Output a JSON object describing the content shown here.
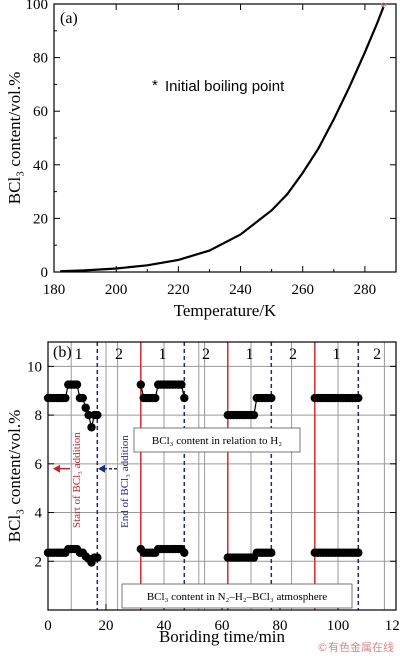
{
  "chart_data": [
    {
      "type": "line",
      "panel_tag": "(a)",
      "xlabel": "Temperature/K",
      "ylabel": "BCl₃ content/vol.%",
      "xlim": [
        180,
        290
      ],
      "ylim": [
        0,
        100
      ],
      "xticks": [
        "180",
        "200",
        "220",
        "240",
        "260",
        "280"
      ],
      "yticks": [
        "0",
        "20",
        "40",
        "60",
        "80",
        "100"
      ],
      "curve": {
        "x": [
          182,
          190,
          200,
          210,
          220,
          230,
          240,
          250,
          255,
          260,
          265,
          270,
          275,
          280,
          284,
          286
        ],
        "y": [
          0.3,
          0.6,
          1.3,
          2.5,
          4.5,
          8,
          14,
          23,
          29,
          37,
          46,
          57,
          69,
          82,
          93,
          99
        ]
      },
      "marker_point": {
        "x": 286,
        "y": 99
      },
      "legend": {
        "symbol": "*",
        "label": "Initial boiling point",
        "color": "#d94c4c"
      }
    },
    {
      "type": "scatter",
      "panel_tag": "(b)",
      "xlabel": "Boriding time/min",
      "ylabel": "BCl₃ content/vol.%",
      "xlim": [
        0,
        120
      ],
      "ylim": [
        0,
        11
      ],
      "xticks": [
        "0",
        "20",
        "40",
        "60",
        "80",
        "100",
        "120"
      ],
      "yticks": [
        "2",
        "4",
        "6",
        "8",
        "10"
      ],
      "stage_labels": [
        "1",
        "2",
        "1",
        "2",
        "1",
        "2",
        "1",
        "2"
      ],
      "series": [
        {
          "segments": [
            {
              "x": [
                0,
                1,
                2,
                3,
                4,
                5,
                6,
                7,
                8,
                9,
                10,
                11,
                12,
                13,
                14,
                15,
                16,
                17
              ],
              "y": [
                8.7,
                8.7,
                8.7,
                8.7,
                8.7,
                8.7,
                8.7,
                9.25,
                9.25,
                9.25,
                9.25,
                8.7,
                8.7,
                8.3,
                8.0,
                7.5,
                8.0,
                8.0
              ]
            },
            {
              "x": [
                32,
                33,
                34,
                35,
                36,
                37,
                38,
                39,
                40,
                41,
                42,
                43,
                44,
                45,
                46,
                47
              ],
              "y": [
                9.25,
                8.7,
                8.7,
                8.7,
                8.7,
                8.7,
                9.25,
                9.25,
                9.25,
                9.25,
                9.25,
                9.25,
                9.25,
                9.25,
                9.25,
                8.7
              ]
            },
            {
              "x": [
                62,
                63,
                64,
                65,
                66,
                67,
                68,
                69,
                70,
                71,
                72,
                73,
                74,
                75,
                76,
                77
              ],
              "y": [
                8.0,
                8.0,
                8.0,
                8.0,
                8.0,
                8.0,
                8.0,
                8.0,
                8.0,
                8.0,
                8.7,
                8.7,
                8.7,
                8.7,
                8.7,
                8.7
              ]
            },
            {
              "x": [
                92,
                93,
                94,
                95,
                96,
                97,
                98,
                99,
                100,
                101,
                102,
                103,
                104,
                105,
                106,
                107
              ],
              "y": [
                8.7,
                8.7,
                8.7,
                8.7,
                8.7,
                8.7,
                8.7,
                8.7,
                8.7,
                8.7,
                8.7,
                8.7,
                8.7,
                8.7,
                8.7,
                8.7
              ]
            }
          ]
        },
        {
          "segments": [
            {
              "x": [
                0,
                1,
                2,
                3,
                4,
                5,
                6,
                7,
                8,
                9,
                10,
                11,
                12,
                13,
                14,
                15,
                16,
                17
              ],
              "y": [
                2.35,
                2.35,
                2.35,
                2.35,
                2.35,
                2.35,
                2.35,
                2.5,
                2.5,
                2.5,
                2.5,
                2.35,
                2.35,
                2.2,
                2.1,
                1.95,
                2.15,
                2.15
              ]
            },
            {
              "x": [
                32,
                33,
                34,
                35,
                36,
                37,
                38,
                39,
                40,
                41,
                42,
                43,
                44,
                45,
                46,
                47
              ],
              "y": [
                2.5,
                2.35,
                2.35,
                2.35,
                2.35,
                2.35,
                2.5,
                2.5,
                2.5,
                2.5,
                2.5,
                2.5,
                2.5,
                2.5,
                2.5,
                2.35
              ]
            },
            {
              "x": [
                62,
                63,
                64,
                65,
                66,
                67,
                68,
                69,
                70,
                71,
                72,
                73,
                74,
                75,
                76,
                77
              ],
              "y": [
                2.15,
                2.15,
                2.15,
                2.15,
                2.15,
                2.15,
                2.15,
                2.15,
                2.15,
                2.15,
                2.35,
                2.35,
                2.35,
                2.35,
                2.35,
                2.35
              ]
            },
            {
              "x": [
                92,
                93,
                94,
                95,
                96,
                97,
                98,
                99,
                100,
                101,
                102,
                103,
                104,
                105,
                106,
                107
              ],
              "y": [
                2.35,
                2.35,
                2.35,
                2.35,
                2.35,
                2.35,
                2.35,
                2.35,
                2.35,
                2.35,
                2.35,
                2.35,
                2.35,
                2.35,
                2.35,
                2.35
              ]
            }
          ]
        }
      ],
      "red_lines_x": [
        32,
        62,
        92
      ],
      "blue_dashed_x": [
        17,
        47,
        77,
        107
      ],
      "gray_lines_x": [
        8,
        20,
        24,
        40,
        52,
        54,
        70,
        84,
        100,
        116
      ],
      "gray_lines_y": [
        2,
        4,
        6,
        8,
        10
      ],
      "annotation_upper": "BCl₃ content in relation to H₂",
      "annotation_lower": "BCl₃ content in N₂–H₂–BCl₃ atmosphere",
      "start_note": "Start of BCl₃ addition",
      "end_note": "End of BCl₃ addition",
      "arrow_y": 5.8
    }
  ],
  "watermark": "©有色金属在线"
}
